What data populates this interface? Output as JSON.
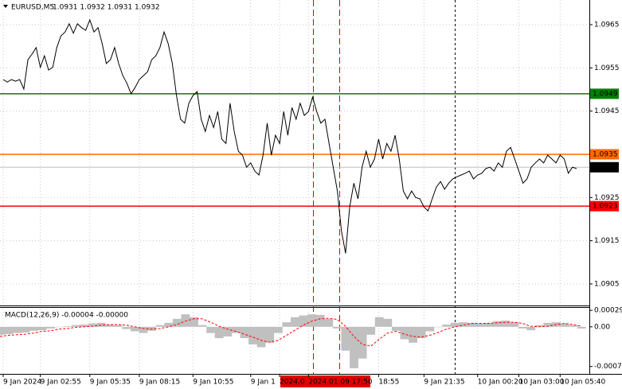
{
  "chart_data": [
    {
      "type": "line",
      "title": "EURUSD,M5",
      "ohlc": "1.0931 1.0932 1.0931 1.0932",
      "color": "#000000",
      "categories": [
        "9 Jan 2024",
        null,
        null,
        null,
        null,
        null,
        null,
        null,
        null,
        "9 Jan 02:55",
        null,
        null,
        null,
        null,
        null,
        null,
        null,
        null,
        null,
        null,
        null,
        "9 Jan 05:35",
        null,
        null,
        null,
        null,
        null,
        null,
        null,
        null,
        null,
        null,
        null,
        "9 Jan 08:15",
        null,
        null,
        null,
        null,
        null,
        null,
        null,
        null,
        null,
        null,
        null,
        null,
        "9 Jan 10:55",
        null,
        null,
        null,
        null,
        null,
        null,
        null,
        null,
        null,
        null,
        null,
        null,
        null,
        "9 Jan 1",
        null,
        null,
        null,
        null,
        null,
        null,
        "2024.0",
        null,
        null,
        null,
        null,
        null,
        null,
        "2024.01.09 17:50",
        null,
        null,
        null,
        null,
        null,
        null,
        null,
        null,
        null,
        null,
        null,
        null,
        null,
        null,
        null,
        null,
        "18:55",
        null,
        null,
        null,
        null,
        null,
        null,
        null,
        null,
        null,
        null,
        "9 Jan 21:35",
        null,
        null,
        null,
        null,
        null,
        null,
        null,
        null,
        null,
        null,
        null,
        null,
        "10 Jan 00:20",
        null,
        null,
        null,
        null,
        null,
        null,
        null,
        null,
        null,
        "10 Jan 03:00",
        null,
        null,
        null,
        null,
        null,
        null,
        null,
        null,
        null,
        "10 Jan 05:40",
        null,
        null,
        null,
        null
      ],
      "values": [
        1.09523,
        1.09517,
        1.09523,
        1.09519,
        1.09523,
        1.09501,
        1.09569,
        1.09582,
        1.09597,
        1.09551,
        1.09578,
        1.09545,
        1.09551,
        1.09597,
        1.09624,
        1.09633,
        1.09652,
        1.0963,
        1.09652,
        1.09643,
        1.09637,
        1.09661,
        1.09633,
        1.09643,
        1.09606,
        1.0956,
        1.09569,
        1.09597,
        1.0956,
        1.09532,
        1.09514,
        1.0949,
        1.09505,
        1.09523,
        1.09532,
        1.09541,
        1.09569,
        1.09578,
        1.09597,
        1.09633,
        1.09606,
        1.0956,
        1.09486,
        1.09431,
        1.09422,
        1.09468,
        1.09486,
        1.09495,
        1.09431,
        1.09403,
        1.0944,
        1.09412,
        1.09449,
        1.09385,
        1.09375,
        1.09468,
        1.09403,
        1.09357,
        1.09348,
        1.0932,
        1.0933,
        1.09311,
        1.09302,
        1.09348,
        1.09422,
        1.09348,
        1.09394,
        1.09375,
        1.09449,
        1.09394,
        1.09458,
        1.09431,
        1.09468,
        1.0944,
        1.09449,
        1.09482,
        1.09449,
        1.09422,
        1.09431,
        1.09375,
        1.0932,
        1.09265,
        1.09173,
        1.09121,
        1.09228,
        1.09283,
        1.09247,
        1.0932,
        1.09357,
        1.0932,
        1.09339,
        1.09385,
        1.09339,
        1.09375,
        1.09357,
        1.09394,
        1.09339,
        1.09265,
        1.09247,
        1.09265,
        1.0925,
        1.09247,
        1.09228,
        1.09219,
        1.09247,
        1.09274,
        1.09287,
        1.09269,
        1.09283,
        1.09293,
        1.09298,
        1.09302,
        1.09306,
        1.09311,
        1.09293,
        1.09302,
        1.09306,
        1.09317,
        1.0932,
        1.09311,
        1.0933,
        1.0932,
        1.09357,
        1.09366,
        1.09339,
        1.09311,
        1.09283,
        1.09293,
        1.0932,
        1.0933,
        1.09339,
        1.0933,
        1.09348,
        1.09339,
        1.0933,
        1.09348,
        1.09339,
        1.09306,
        1.0932,
        1.09317
      ],
      "ylim": [
        1.09002,
        1.09707
      ],
      "yticks": [
        1.0965,
        1.0955,
        1.0945,
        1.0935,
        1.0925,
        1.0915,
        1.0905
      ],
      "grid": true,
      "levels": [
        {
          "value": 1.0949,
          "color": "#008000"
        },
        {
          "value": 1.0935,
          "color": "#ff6a00"
        },
        {
          "value": 1.0932,
          "color": "#000000"
        },
        {
          "value": 1.0923,
          "color": "#ff0000"
        }
      ]
    },
    {
      "type": "macd",
      "title": "MACD(12,26,9) -0.00004 -0.00000",
      "histogram": {
        "color": "#c0c0c0",
        "values": [
          -0.00014,
          -0.00013,
          -0.00011,
          -0.0001,
          -7e-05,
          -6e-05,
          -3e-05,
          0,
          1e-05,
          3e-05,
          4e-05,
          6e-05,
          7e-05,
          4e-05,
          3e-05,
          -4e-05,
          -8e-05,
          -0.00011,
          -7e-05,
          3e-05,
          7e-05,
          0.00014,
          0.00022,
          0.00017,
          3e-05,
          -0.00011,
          -0.0002,
          -0.00017,
          -0.00011,
          -0.0002,
          -0.00031,
          -0.00036,
          -0.00028,
          -0.00011,
          8e-05,
          0.00017,
          0.0002,
          0.00022,
          0.00021,
          0.00014,
          -3e-05,
          -0.00042,
          -0.00073,
          -0.00056,
          -0.00014,
          0.00017,
          0.00014,
          -7e-05,
          -0.00022,
          -0.00028,
          -0.0002,
          -8e-05,
          0,
          4e-05,
          7e-05,
          8e-05,
          7e-05,
          6e-05,
          7e-05,
          0.0001,
          0.00011,
          8e-05,
          -3e-05,
          -6e-05,
          3e-05,
          7e-05,
          8e-05,
          6e-05,
          3e-05,
          -3e-05
        ]
      },
      "signal": {
        "color": "#ff0000",
        "values": [
          -0.00017,
          -0.00015,
          -0.00014,
          -0.00013,
          -0.00011,
          -8e-05,
          -7e-05,
          -4e-05,
          -3e-05,
          -1e-05,
          0,
          1e-05,
          3e-05,
          4e-05,
          4e-05,
          3e-05,
          0,
          -3e-05,
          -4e-05,
          -3e-05,
          0,
          4e-05,
          0.0001,
          0.00014,
          0.00014,
          8e-05,
          1e-05,
          -4e-05,
          -8e-05,
          -0.00013,
          -0.00018,
          -0.00024,
          -0.00027,
          -0.00024,
          -0.00015,
          -6e-05,
          3e-05,
          0.0001,
          0.00014,
          0.00015,
          0.00013,
          1e-05,
          -0.00017,
          -0.00031,
          -0.00034,
          -0.00022,
          -0.00011,
          -8e-05,
          -0.00013,
          -0.00017,
          -0.00018,
          -0.00015,
          -0.0001,
          -4e-05,
          0,
          3e-05,
          6e-05,
          6e-05,
          6e-05,
          7e-05,
          8e-05,
          8e-05,
          6e-05,
          1e-05,
          0,
          1e-05,
          4e-05,
          6e-05,
          4e-05,
          1e-05
        ]
      },
      "ylim": [
        -0.00083,
        0.00032
      ],
      "yticks": [
        0.00029,
        {
          "value": 0,
          "label": "0.00"
        },
        -0.0007
      ]
    }
  ]
}
